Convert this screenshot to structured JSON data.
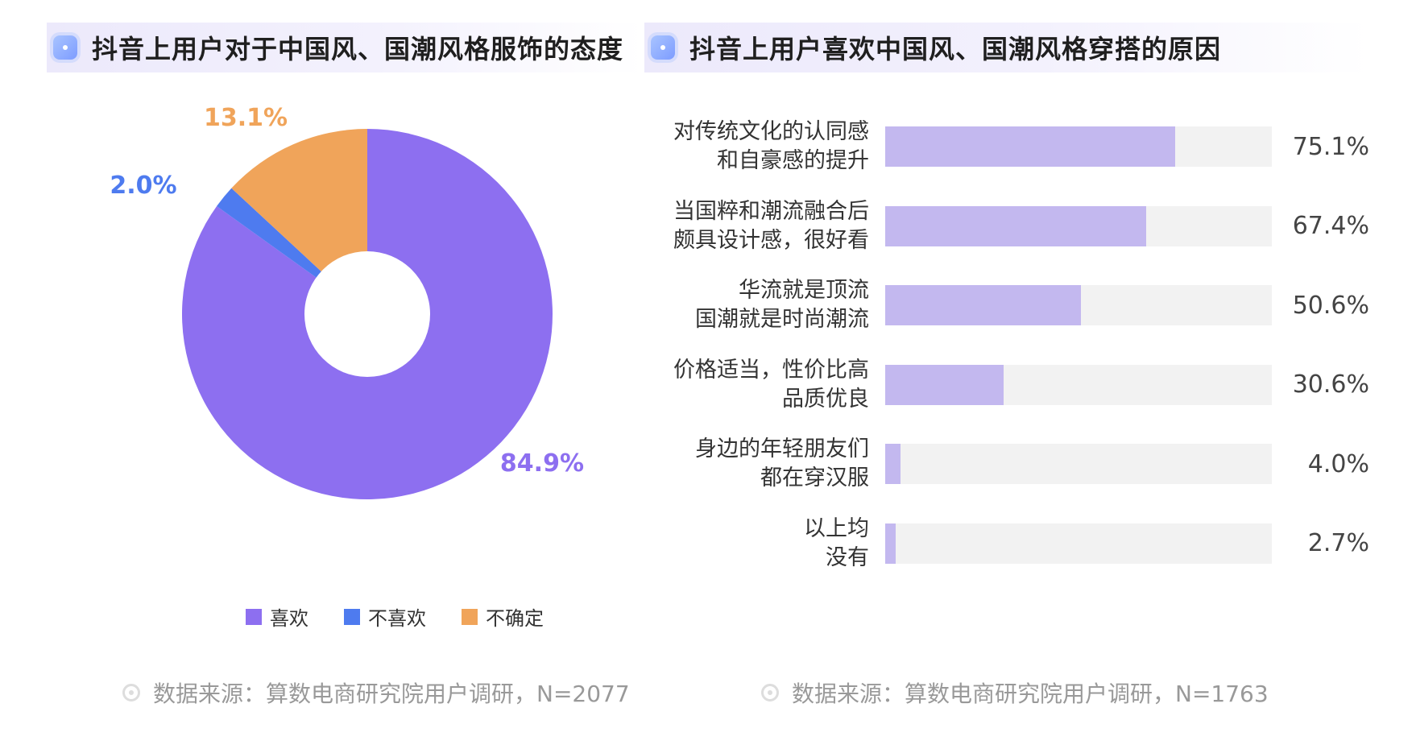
{
  "left_panel": {
    "title": "抖音上用户对于中国风、国潮风格服饰的态度",
    "source": "数据来源：算数电商研究院用户调研，N=2077"
  },
  "right_panel": {
    "title": "抖音上用户喜欢中国风、国潮风格穿搭的原因",
    "source": "数据来源：算数电商研究院用户调研，N=1763"
  },
  "chart_data": [
    {
      "type": "pie",
      "title": "抖音上用户对于中国风、国潮风格服饰的态度",
      "categories": [
        "喜欢",
        "不喜欢",
        "不确定"
      ],
      "values": [
        84.9,
        2.0,
        13.1
      ],
      "value_labels": [
        "84.9%",
        "2.0%",
        "13.1%"
      ],
      "colors": [
        "#8d6ff0",
        "#4e7bef",
        "#f0a45a"
      ],
      "donut": true,
      "legend": "bottom"
    },
    {
      "type": "bar",
      "orientation": "horizontal",
      "title": "抖音上用户喜欢中国风、国潮风格穿搭的原因",
      "categories": [
        [
          "对传统文化的认同感",
          "和自豪感的提升"
        ],
        [
          "当国粹和潮流融合后",
          "颇具设计感，很好看"
        ],
        [
          "华流就是顶流",
          "国潮就是时尚潮流"
        ],
        [
          "价格适当，性价比高",
          "品质优良"
        ],
        [
          "身边的年轻朋友们",
          "都在穿汉服"
        ],
        [
          "以上均",
          "没有"
        ]
      ],
      "values": [
        75.1,
        67.4,
        50.6,
        30.6,
        4.0,
        2.7
      ],
      "value_labels": [
        "75.1%",
        "67.4%",
        "50.6%",
        "30.6%",
        "4.0%",
        "2.7%"
      ],
      "xlim": [
        0,
        100
      ],
      "bar_color": "#c3b8ef",
      "track_color": "#f2f2f2"
    }
  ]
}
